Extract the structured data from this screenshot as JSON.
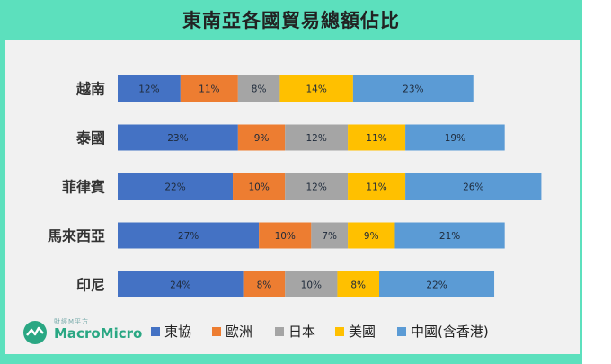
{
  "title": "東南亞各國貿易總額佔比",
  "logo": {
    "small_text": "財經M平方",
    "brand": "MacroMicro"
  },
  "colors": {
    "frame": "#5ce0bd",
    "plot_bg": "#f1f1f1",
    "logo": "#2aa783"
  },
  "chart_data": {
    "type": "bar",
    "orientation": "horizontal",
    "stacked": true,
    "title": "東南亞各國貿易總額佔比",
    "categories": [
      "越南",
      "泰國",
      "菲律賓",
      "馬來西亞",
      "印尼"
    ],
    "series": [
      {
        "name": "東協",
        "color": "#4472c4",
        "values": [
          12,
          23,
          22,
          27,
          24
        ]
      },
      {
        "name": "歐洲",
        "color": "#ed7d31",
        "values": [
          11,
          9,
          10,
          10,
          8
        ]
      },
      {
        "name": "日本",
        "color": "#a5a5a5",
        "values": [
          8,
          12,
          12,
          7,
          10
        ]
      },
      {
        "name": "美國",
        "color": "#ffc000",
        "values": [
          14,
          11,
          11,
          9,
          8
        ]
      },
      {
        "name": "中國(含香港)",
        "color": "#5b9bd5",
        "values": [
          23,
          19,
          26,
          21,
          22
        ]
      }
    ],
    "value_format": "{v}%",
    "legend_position": "bottom",
    "grid": false,
    "xaxis_visible": false
  }
}
